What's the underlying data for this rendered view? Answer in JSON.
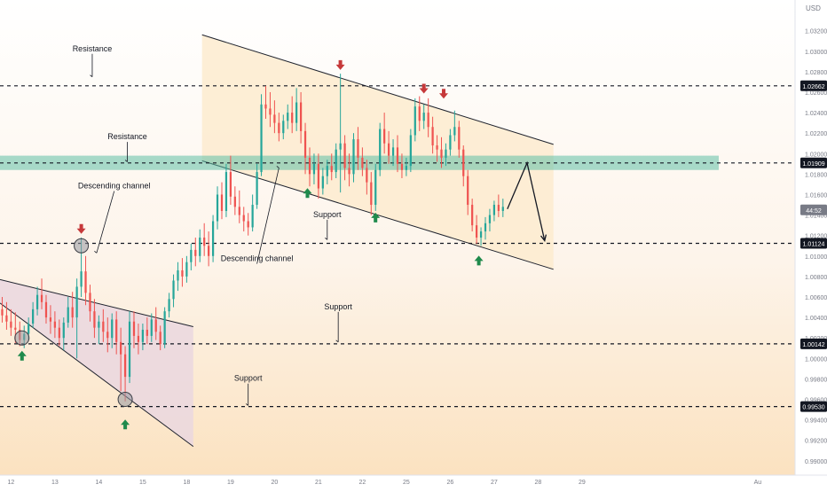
{
  "chart_data": {
    "type": "candlestick",
    "currency": "USD",
    "countdown": "44:52",
    "ylim": [
      0.9886,
      1.035
    ],
    "xlim": [
      11.75,
      29.85
    ],
    "y_ticks": [
      "1.03200",
      "1.03000",
      "1.02800",
      "1.02600",
      "1.02400",
      "1.02200",
      "1.02000",
      "1.01800",
      "1.01600",
      "1.01400",
      "1.01200",
      "1.01000",
      "1.00800",
      "1.00600",
      "1.00400",
      "1.00200",
      "1.00000",
      "0.99800",
      "0.99600",
      "0.99400",
      "0.99200",
      "0.99000"
    ],
    "x_ticks": [
      {
        "label": "12",
        "x": 12.0
      },
      {
        "label": "13",
        "x": 13.0
      },
      {
        "label": "14",
        "x": 14.0
      },
      {
        "label": "15",
        "x": 15.0
      },
      {
        "label": "18",
        "x": 16.0
      },
      {
        "label": "19",
        "x": 17.0
      },
      {
        "label": "20",
        "x": 18.0
      },
      {
        "label": "21",
        "x": 19.0
      },
      {
        "label": "22",
        "x": 20.0
      },
      {
        "label": "25",
        "x": 21.0
      },
      {
        "label": "26",
        "x": 22.0
      },
      {
        "label": "27",
        "x": 23.0
      },
      {
        "label": "28",
        "x": 24.0
      },
      {
        "label": "29",
        "x": 25.0
      },
      {
        "label": "Au",
        "x": 29.0
      }
    ],
    "levels": [
      {
        "value": 1.02662,
        "label": "1.02662",
        "kind": "resistance"
      },
      {
        "value": 1.01909,
        "label": "1.01909",
        "kind": "resistance"
      },
      {
        "value": 1.01124,
        "label": "1.01124",
        "kind": "support"
      },
      {
        "value": 1.00142,
        "label": "1.00142",
        "kind": "support"
      },
      {
        "value": 0.9953,
        "label": "0.99530",
        "kind": "support"
      }
    ],
    "current_price": {
      "value": 1.0145,
      "color": "#787b86"
    },
    "zone": {
      "from": 1.0184,
      "to": 1.0198,
      "color": "#5fbfa5"
    },
    "channels": [
      {
        "name": "channel-1",
        "upper": [
          [
            11.75,
            1.0077
          ],
          [
            16.15,
            1.0031
          ]
        ],
        "lower": [
          [
            11.75,
            1.0054
          ],
          [
            16.15,
            0.9914
          ]
        ],
        "fill": "#ead7df",
        "x_from": 11.75,
        "x_to": 16.15
      },
      {
        "name": "channel-2",
        "upper": [
          [
            16.35,
            1.0316
          ],
          [
            24.35,
            1.0209
          ]
        ],
        "lower": [
          [
            16.35,
            1.0193
          ],
          [
            24.35,
            1.0087
          ]
        ],
        "fill": "#fdebcf",
        "x_from": 16.35,
        "x_to": 24.35
      }
    ],
    "forecast": [
      [
        23.3,
        1.0146
      ],
      [
        23.75,
        1.0191
      ],
      [
        24.15,
        1.0115
      ]
    ],
    "series": [
      {
        "x": 11.8,
        "o": 1.0048,
        "h": 1.006,
        "c": 1.0042,
        "l": 1.0035
      },
      {
        "x": 11.9,
        "o": 1.0042,
        "h": 1.0055,
        "c": 1.0036,
        "l": 1.0028
      },
      {
        "x": 12.0,
        "o": 1.0036,
        "h": 1.0048,
        "c": 1.003,
        "l": 1.0022
      },
      {
        "x": 12.1,
        "o": 1.003,
        "h": 1.0045,
        "c": 1.0028,
        "l": 1.0015
      },
      {
        "x": 12.2,
        "o": 1.0028,
        "h": 1.0036,
        "c": 1.0018,
        "l": 1.0012
      },
      {
        "x": 12.3,
        "o": 1.0018,
        "h": 1.0032,
        "c": 1.0024,
        "l": 1.001
      },
      {
        "x": 12.4,
        "o": 1.0024,
        "h": 1.004,
        "c": 1.0034,
        "l": 1.0018
      },
      {
        "x": 12.5,
        "o": 1.0034,
        "h": 1.0055,
        "c": 1.0048,
        "l": 1.003
      },
      {
        "x": 12.6,
        "o": 1.0048,
        "h": 1.007,
        "c": 1.0062,
        "l": 1.0042
      },
      {
        "x": 12.7,
        "o": 1.0062,
        "h": 1.0078,
        "c": 1.0055,
        "l": 1.0048
      },
      {
        "x": 12.8,
        "o": 1.0055,
        "h": 1.0062,
        "c": 1.004,
        "l": 1.0034
      },
      {
        "x": 12.9,
        "o": 1.004,
        "h": 1.0052,
        "c": 1.0036,
        "l": 1.0024
      },
      {
        "x": 13.0,
        "o": 1.0036,
        "h": 1.0046,
        "c": 1.003,
        "l": 1.002
      },
      {
        "x": 13.1,
        "o": 1.003,
        "h": 1.0038,
        "c": 1.002,
        "l": 1.0012
      },
      {
        "x": 13.2,
        "o": 1.002,
        "h": 1.004,
        "c": 1.0035,
        "l": 1.0008
      },
      {
        "x": 13.3,
        "o": 1.0035,
        "h": 1.006,
        "c": 1.005,
        "l": 1.003
      },
      {
        "x": 13.4,
        "o": 1.005,
        "h": 1.0065,
        "c": 1.004,
        "l": 1.003
      },
      {
        "x": 13.5,
        "o": 1.004,
        "h": 1.0078,
        "c": 1.007,
        "l": 1.0
      },
      {
        "x": 13.6,
        "o": 1.007,
        "h": 1.0118,
        "c": 1.0085,
        "l": 1.006
      },
      {
        "x": 13.7,
        "o": 1.0085,
        "h": 1.01,
        "c": 1.0064,
        "l": 1.0052
      },
      {
        "x": 13.8,
        "o": 1.0064,
        "h": 1.0072,
        "c": 1.0046,
        "l": 1.0036
      },
      {
        "x": 13.9,
        "o": 1.0046,
        "h": 1.0058,
        "c": 1.003,
        "l": 1.002
      },
      {
        "x": 14.0,
        "o": 1.003,
        "h": 1.0042,
        "c": 1.0036,
        "l": 1.0014
      },
      {
        "x": 14.1,
        "o": 1.0036,
        "h": 1.0048,
        "c": 1.0026,
        "l": 1.0016
      },
      {
        "x": 14.2,
        "o": 1.0026,
        "h": 1.004,
        "c": 1.002,
        "l": 1.0006
      },
      {
        "x": 14.3,
        "o": 1.002,
        "h": 1.0044,
        "c": 1.0038,
        "l": 1.001
      },
      {
        "x": 14.4,
        "o": 1.0038,
        "h": 1.0046,
        "c": 1.0016,
        "l": 1.0004
      },
      {
        "x": 14.5,
        "o": 1.0016,
        "h": 1.003,
        "c": 1.0004,
        "l": 0.9968
      },
      {
        "x": 14.6,
        "o": 1.0004,
        "h": 1.0012,
        "c": 0.9982,
        "l": 0.9958
      },
      {
        "x": 14.7,
        "o": 0.9982,
        "h": 1.0046,
        "c": 1.0036,
        "l": 0.9976
      },
      {
        "x": 14.8,
        "o": 1.0036,
        "h": 1.0046,
        "c": 1.0022,
        "l": 1.001
      },
      {
        "x": 14.9,
        "o": 1.0022,
        "h": 1.0034,
        "c": 1.0016,
        "l": 1.0004
      },
      {
        "x": 15.0,
        "o": 1.0016,
        "h": 1.0034,
        "c": 1.0028,
        "l": 1.0008
      },
      {
        "x": 15.1,
        "o": 1.0028,
        "h": 1.004,
        "c": 1.0022,
        "l": 1.0014
      },
      {
        "x": 15.2,
        "o": 1.0022,
        "h": 1.0044,
        "c": 1.0038,
        "l": 1.0016
      },
      {
        "x": 15.3,
        "o": 1.0038,
        "h": 1.005,
        "c": 1.0026,
        "l": 1.0018
      },
      {
        "x": 15.4,
        "o": 1.0026,
        "h": 1.0032,
        "c": 1.0014,
        "l": 1.0008
      },
      {
        "x": 15.5,
        "o": 1.0014,
        "h": 1.005,
        "c": 1.0046,
        "l": 1.001
      },
      {
        "x": 15.6,
        "o": 1.0046,
        "h": 1.0064,
        "c": 1.0058,
        "l": 1.004
      },
      {
        "x": 15.7,
        "o": 1.0058,
        "h": 1.0082,
        "c": 1.0076,
        "l": 1.005
      },
      {
        "x": 15.8,
        "o": 1.0076,
        "h": 1.0094,
        "c": 1.0086,
        "l": 1.0066
      },
      {
        "x": 15.9,
        "o": 1.0086,
        "h": 1.0098,
        "c": 1.008,
        "l": 1.007
      },
      {
        "x": 16.0,
        "o": 1.008,
        "h": 1.01,
        "c": 1.0094,
        "l": 1.0074
      },
      {
        "x": 16.1,
        "o": 1.0094,
        "h": 1.0112,
        "c": 1.0106,
        "l": 1.0086
      },
      {
        "x": 16.2,
        "o": 1.0106,
        "h": 1.0118,
        "c": 1.01,
        "l": 1.009
      },
      {
        "x": 16.3,
        "o": 1.01,
        "h": 1.0126,
        "c": 1.0118,
        "l": 1.0094
      },
      {
        "x": 16.4,
        "o": 1.0118,
        "h": 1.0132,
        "c": 1.011,
        "l": 1.01
      },
      {
        "x": 16.5,
        "o": 1.011,
        "h": 1.0124,
        "c": 1.01,
        "l": 1.009
      },
      {
        "x": 16.6,
        "o": 1.01,
        "h": 1.014,
        "c": 1.0134,
        "l": 1.0094
      },
      {
        "x": 16.7,
        "o": 1.0134,
        "h": 1.0168,
        "c": 1.016,
        "l": 1.0126
      },
      {
        "x": 16.8,
        "o": 1.016,
        "h": 1.0172,
        "c": 1.0144,
        "l": 1.0136
      },
      {
        "x": 16.9,
        "o": 1.0144,
        "h": 1.019,
        "c": 1.0182,
        "l": 1.0138
      },
      {
        "x": 17.0,
        "o": 1.0182,
        "h": 1.0198,
        "c": 1.0158,
        "l": 1.015
      },
      {
        "x": 17.1,
        "o": 1.0158,
        "h": 1.0168,
        "c": 1.0148,
        "l": 1.014
      },
      {
        "x": 17.2,
        "o": 1.0148,
        "h": 1.0164,
        "c": 1.014,
        "l": 1.0132
      },
      {
        "x": 17.3,
        "o": 1.014,
        "h": 1.0148,
        "c": 1.0134,
        "l": 1.0124
      },
      {
        "x": 17.4,
        "o": 1.0134,
        "h": 1.0142,
        "c": 1.0128,
        "l": 1.012
      },
      {
        "x": 17.5,
        "o": 1.0128,
        "h": 1.016,
        "c": 1.015,
        "l": 1.0124
      },
      {
        "x": 17.6,
        "o": 1.015,
        "h": 1.019,
        "c": 1.0182,
        "l": 1.0146
      },
      {
        "x": 17.7,
        "o": 1.0182,
        "h": 1.0258,
        "c": 1.0248,
        "l": 1.0178
      },
      {
        "x": 17.8,
        "o": 1.0248,
        "h": 1.0266,
        "c": 1.0244,
        "l": 1.0234
      },
      {
        "x": 17.9,
        "o": 1.0244,
        "h": 1.026,
        "c": 1.0238,
        "l": 1.0226
      },
      {
        "x": 18.0,
        "o": 1.0238,
        "h": 1.0252,
        "c": 1.023,
        "l": 1.022
      },
      {
        "x": 18.1,
        "o": 1.023,
        "h": 1.024,
        "c": 1.022,
        "l": 1.0212
      },
      {
        "x": 18.2,
        "o": 1.022,
        "h": 1.0238,
        "c": 1.0232,
        "l": 1.0214
      },
      {
        "x": 18.3,
        "o": 1.0232,
        "h": 1.0248,
        "c": 1.024,
        "l": 1.0224
      },
      {
        "x": 18.4,
        "o": 1.024,
        "h": 1.0256,
        "c": 1.023,
        "l": 1.022
      },
      {
        "x": 18.5,
        "o": 1.023,
        "h": 1.0264,
        "c": 1.025,
        "l": 1.0222
      },
      {
        "x": 18.6,
        "o": 1.025,
        "h": 1.026,
        "c": 1.0222,
        "l": 1.021
      },
      {
        "x": 18.7,
        "o": 1.0222,
        "h": 1.023,
        "c": 1.0196,
        "l": 1.018
      },
      {
        "x": 18.8,
        "o": 1.0196,
        "h": 1.0206,
        "c": 1.018,
        "l": 1.0168
      },
      {
        "x": 18.9,
        "o": 1.018,
        "h": 1.02,
        "c": 1.019,
        "l": 1.017
      },
      {
        "x": 19.0,
        "o": 1.019,
        "h": 1.02,
        "c": 1.0166,
        "l": 1.0156
      },
      {
        "x": 19.1,
        "o": 1.0166,
        "h": 1.0186,
        "c": 1.0178,
        "l": 1.016
      },
      {
        "x": 19.2,
        "o": 1.0178,
        "h": 1.0194,
        "c": 1.0188,
        "l": 1.017
      },
      {
        "x": 19.3,
        "o": 1.0188,
        "h": 1.02,
        "c": 1.0182,
        "l": 1.0174
      },
      {
        "x": 19.4,
        "o": 1.0182,
        "h": 1.021,
        "c": 1.0204,
        "l": 1.0176
      },
      {
        "x": 19.5,
        "o": 1.0204,
        "h": 1.0278,
        "c": 1.021,
        "l": 1.0162
      },
      {
        "x": 19.6,
        "o": 1.021,
        "h": 1.0218,
        "c": 1.0186,
        "l": 1.0174
      },
      {
        "x": 19.7,
        "o": 1.0186,
        "h": 1.02,
        "c": 1.018,
        "l": 1.0168
      },
      {
        "x": 19.8,
        "o": 1.018,
        "h": 1.022,
        "c": 1.0214,
        "l": 1.0172
      },
      {
        "x": 19.9,
        "o": 1.0214,
        "h": 1.0226,
        "c": 1.0196,
        "l": 1.0184
      },
      {
        "x": 20.0,
        "o": 1.0196,
        "h": 1.0206,
        "c": 1.0186,
        "l": 1.0178
      },
      {
        "x": 20.1,
        "o": 1.0186,
        "h": 1.0194,
        "c": 1.0172,
        "l": 1.016
      },
      {
        "x": 20.2,
        "o": 1.0172,
        "h": 1.0182,
        "c": 1.015,
        "l": 1.014
      },
      {
        "x": 20.3,
        "o": 1.015,
        "h": 1.019,
        "c": 1.0184,
        "l": 1.0144
      },
      {
        "x": 20.4,
        "o": 1.0184,
        "h": 1.023,
        "c": 1.0224,
        "l": 1.0178
      },
      {
        "x": 20.5,
        "o": 1.0224,
        "h": 1.024,
        "c": 1.021,
        "l": 1.02
      },
      {
        "x": 20.6,
        "o": 1.021,
        "h": 1.0222,
        "c": 1.0198,
        "l": 1.019
      },
      {
        "x": 20.7,
        "o": 1.0198,
        "h": 1.0214,
        "c": 1.0206,
        "l": 1.0188
      },
      {
        "x": 20.8,
        "o": 1.0206,
        "h": 1.0218,
        "c": 1.019,
        "l": 1.0182
      },
      {
        "x": 20.9,
        "o": 1.019,
        "h": 1.02,
        "c": 1.0184,
        "l": 1.0176
      },
      {
        "x": 21.0,
        "o": 1.0184,
        "h": 1.0196,
        "c": 1.0188,
        "l": 1.0178
      },
      {
        "x": 21.1,
        "o": 1.0188,
        "h": 1.0224,
        "c": 1.0218,
        "l": 1.0182
      },
      {
        "x": 21.2,
        "o": 1.0218,
        "h": 1.0254,
        "c": 1.0246,
        "l": 1.0212
      },
      {
        "x": 21.3,
        "o": 1.0246,
        "h": 1.0256,
        "c": 1.0232,
        "l": 1.0222
      },
      {
        "x": 21.4,
        "o": 1.0232,
        "h": 1.0248,
        "c": 1.024,
        "l": 1.0224
      },
      {
        "x": 21.5,
        "o": 1.024,
        "h": 1.0254,
        "c": 1.0226,
        "l": 1.0216
      },
      {
        "x": 21.6,
        "o": 1.0226,
        "h": 1.0236,
        "c": 1.0208,
        "l": 1.02
      },
      {
        "x": 21.7,
        "o": 1.0208,
        "h": 1.0218,
        "c": 1.0204,
        "l": 1.0192
      },
      {
        "x": 21.8,
        "o": 1.0204,
        "h": 1.0216,
        "c": 1.0196,
        "l": 1.0186
      },
      {
        "x": 21.9,
        "o": 1.0196,
        "h": 1.021,
        "c": 1.0204,
        "l": 1.0188
      },
      {
        "x": 22.0,
        "o": 1.0204,
        "h": 1.0224,
        "c": 1.0218,
        "l": 1.0198
      },
      {
        "x": 22.1,
        "o": 1.0218,
        "h": 1.0242,
        "c": 1.0226,
        "l": 1.0212
      },
      {
        "x": 22.2,
        "o": 1.0226,
        "h": 1.0232,
        "c": 1.0204,
        "l": 1.0196
      },
      {
        "x": 22.3,
        "o": 1.0204,
        "h": 1.0208,
        "c": 1.0178,
        "l": 1.0168
      },
      {
        "x": 22.4,
        "o": 1.0178,
        "h": 1.0184,
        "c": 1.015,
        "l": 1.014
      },
      {
        "x": 22.5,
        "o": 1.015,
        "h": 1.0156,
        "c": 1.013,
        "l": 1.0124
      },
      {
        "x": 22.6,
        "o": 1.013,
        "h": 1.014,
        "c": 1.0118,
        "l": 1.0112
      },
      {
        "x": 22.7,
        "o": 1.0118,
        "h": 1.0128,
        "c": 1.0124,
        "l": 1.011
      },
      {
        "x": 22.8,
        "o": 1.0124,
        "h": 1.0138,
        "c": 1.0132,
        "l": 1.0116
      },
      {
        "x": 22.9,
        "o": 1.0132,
        "h": 1.0146,
        "c": 1.014,
        "l": 1.0124
      },
      {
        "x": 23.0,
        "o": 1.014,
        "h": 1.0154,
        "c": 1.015,
        "l": 1.0134
      },
      {
        "x": 23.1,
        "o": 1.015,
        "h": 1.016,
        "c": 1.0144,
        "l": 1.0138
      },
      {
        "x": 23.2,
        "o": 1.0144,
        "h": 1.0156,
        "c": 1.0148,
        "l": 1.0138
      }
    ],
    "markers": [
      {
        "kind": "down",
        "x": 13.6,
        "y": 1.0126
      },
      {
        "kind": "down",
        "x": 19.5,
        "y": 1.0286
      },
      {
        "kind": "down",
        "x": 21.4,
        "y": 1.0263
      },
      {
        "kind": "down",
        "x": 21.85,
        "y": 1.0258
      },
      {
        "kind": "up",
        "x": 12.25,
        "y": 1.0003
      },
      {
        "kind": "up",
        "x": 14.6,
        "y": 0.9936
      },
      {
        "kind": "up",
        "x": 18.75,
        "y": 1.0162
      },
      {
        "kind": "up",
        "x": 20.3,
        "y": 1.0138
      },
      {
        "kind": "up",
        "x": 22.65,
        "y": 1.0096
      }
    ],
    "touch_circles": [
      {
        "x": 12.25,
        "y": 1.002
      },
      {
        "x": 13.6,
        "y": 1.011
      },
      {
        "x": 14.6,
        "y": 0.996
      }
    ],
    "annotations": [
      {
        "id": "ann-resistance-top",
        "text": "Resistance",
        "x": 13.85,
        "y": 1.03,
        "tx": 13.85,
        "ty": 1.0275
      },
      {
        "id": "ann-resistance-zone",
        "text": "Resistance",
        "x": 14.65,
        "y": 1.0214,
        "tx": 14.65,
        "ty": 1.0192
      },
      {
        "id": "ann-descending-channel-1",
        "text": "Descending channel",
        "x": 14.35,
        "y": 1.0166,
        "tx": 13.95,
        "ty": 1.0103
      },
      {
        "id": "ann-descending-channel-2",
        "text": "Descending channel",
        "x": 17.6,
        "y": 1.0095,
        "tx": 18.1,
        "ty": 1.0186
      },
      {
        "id": "ann-support-1",
        "text": "Support",
        "x": 19.2,
        "y": 1.0138,
        "tx": 19.2,
        "ty": 1.0116
      },
      {
        "id": "ann-support-2",
        "text": "Support",
        "x": 19.45,
        "y": 1.0048,
        "tx": 19.45,
        "ty": 1.0016
      },
      {
        "id": "ann-support-3",
        "text": "Support",
        "x": 17.4,
        "y": 0.9978,
        "tx": 17.4,
        "ty": 0.9954
      }
    ],
    "colors": {
      "up": "#26a69a",
      "down": "#ef5350",
      "marker_down": "#c6393a",
      "marker_up": "#1f8a4c",
      "axis_text": "#787b86",
      "level_label_bg": "#131722"
    }
  }
}
